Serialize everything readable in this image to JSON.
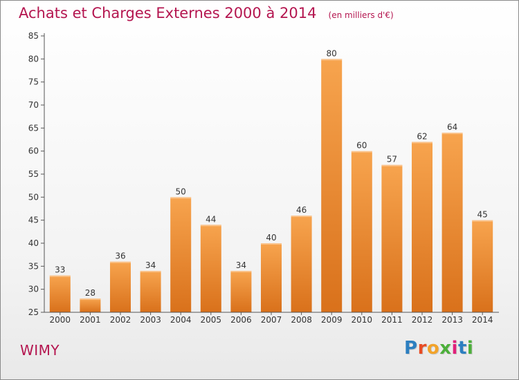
{
  "title": "Achats et Charges Externes 2000 à 2014",
  "unit": "(en milliers d'€)",
  "town": "WIMY",
  "logo": {
    "text": "Proxiti",
    "letter_colors": [
      "#2c7fc0",
      "#e84c24",
      "#f2a32a",
      "#4caf3a",
      "#e0207a",
      "#2c7fc0",
      "#4caf3a"
    ]
  },
  "colors": {
    "title": "#b4154f",
    "bar_light": "#f7a44e",
    "bar_dark": "#d9711b"
  },
  "chart_data": {
    "type": "bar",
    "categories": [
      "2000",
      "2001",
      "2002",
      "2003",
      "2004",
      "2005",
      "2006",
      "2007",
      "2008",
      "2009",
      "2010",
      "2011",
      "2012",
      "2013",
      "2014"
    ],
    "values": [
      33,
      28,
      36,
      34,
      50,
      44,
      34,
      40,
      46,
      80,
      60,
      57,
      62,
      64,
      45
    ],
    "ylim": [
      25,
      85
    ],
    "yticks": [
      25,
      30,
      35,
      40,
      45,
      50,
      55,
      60,
      65,
      70,
      75,
      80,
      85
    ],
    "grid": false,
    "legend": "none"
  }
}
